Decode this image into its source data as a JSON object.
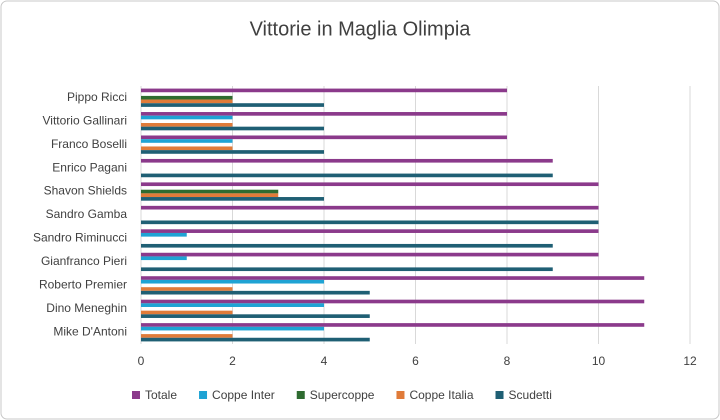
{
  "chart_data": {
    "type": "bar",
    "orientation": "horizontal",
    "title": "Vittorie in Maglia Olimpia",
    "categories": [
      "Pippo Ricci",
      "Vittorio Gallinari",
      "Franco Boselli",
      "Enrico Pagani",
      "Shavon Shields",
      "Sandro Gamba",
      "Sandro Riminucci",
      "Gianfranco Pieri",
      "Roberto Premier",
      "Dino Meneghin",
      "Mike D'Antoni"
    ],
    "series": [
      {
        "name": "Totale",
        "color": "#8b3a8b",
        "values": [
          8,
          8,
          8,
          9,
          10,
          10,
          10,
          10,
          11,
          11,
          11
        ]
      },
      {
        "name": "Coppe Inter",
        "color": "#1fa3d4",
        "values": [
          0,
          2,
          2,
          0,
          0,
          0,
          1,
          1,
          4,
          4,
          4
        ]
      },
      {
        "name": "Supercoppe",
        "color": "#2e6b30",
        "values": [
          2,
          0,
          0,
          0,
          3,
          0,
          0,
          0,
          0,
          0,
          0
        ]
      },
      {
        "name": "Coppe Italia",
        "color": "#e07b39",
        "values": [
          2,
          2,
          2,
          0,
          3,
          0,
          0,
          0,
          2,
          2,
          2
        ]
      },
      {
        "name": "Scudetti",
        "color": "#1f5f74",
        "values": [
          4,
          4,
          4,
          9,
          4,
          10,
          9,
          9,
          5,
          5,
          5
        ]
      }
    ],
    "xlim": [
      0,
      12
    ],
    "xticks": [
      0,
      2,
      4,
      6,
      8,
      10,
      12
    ],
    "grid": true,
    "legend": "bottom"
  }
}
